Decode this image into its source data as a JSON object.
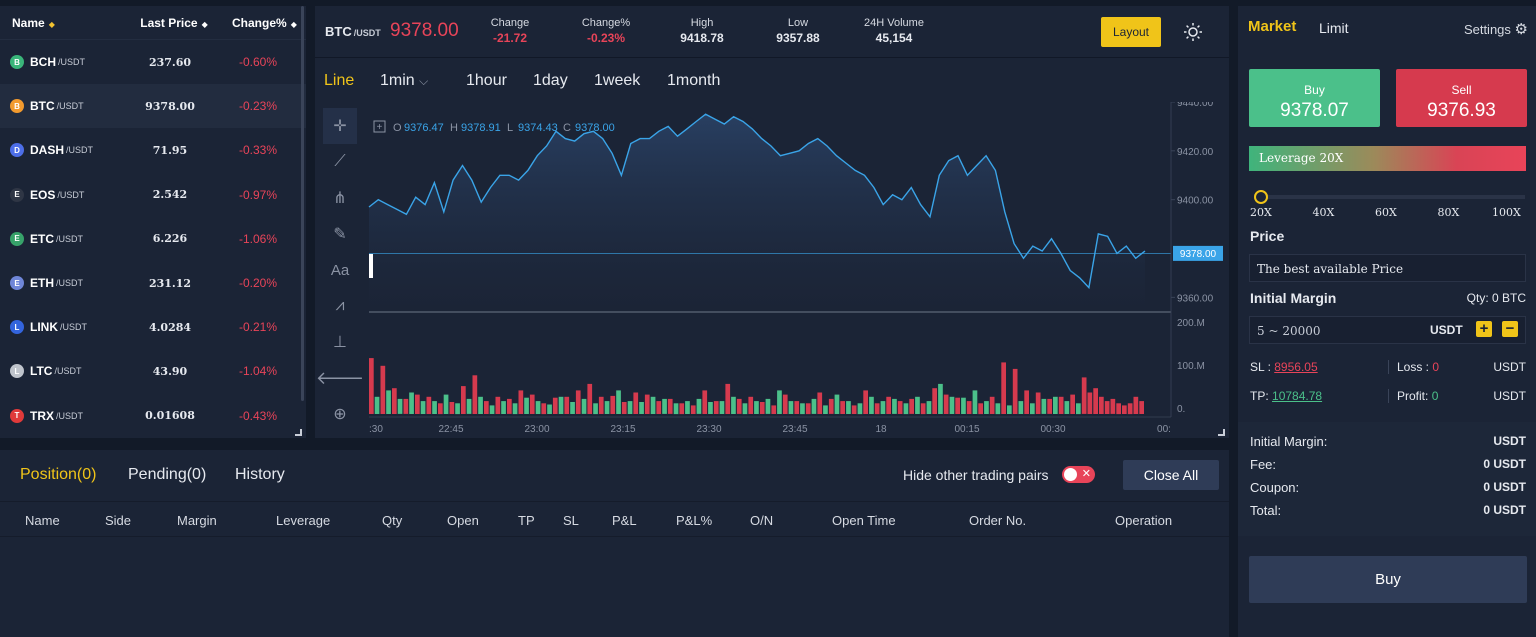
{
  "market_list": {
    "headers": {
      "name": "Name",
      "last_price": "Last Price",
      "change": "Change%"
    },
    "rows": [
      {
        "symbol": "BCH",
        "quote": "/USDT",
        "price": "237.60",
        "change": "-0.60%",
        "color": "#3ab57a",
        "glyph": "B"
      },
      {
        "symbol": "BTC",
        "quote": "/USDT",
        "price": "9378.00",
        "change": "-0.23%",
        "color": "#f29a2e",
        "glyph": "B"
      },
      {
        "symbol": "DASH",
        "quote": "/USDT",
        "price": "71.95",
        "change": "-0.33%",
        "color": "#4d6ee8",
        "glyph": "D"
      },
      {
        "symbol": "EOS",
        "quote": "/USDT",
        "price": "2.542",
        "change": "-0.97%",
        "color": "#2f3645",
        "glyph": "E"
      },
      {
        "symbol": "ETC",
        "quote": "/USDT",
        "price": "6.226",
        "change": "-1.06%",
        "color": "#37a26a",
        "glyph": "E"
      },
      {
        "symbol": "ETH",
        "quote": "/USDT",
        "price": "231.12",
        "change": "-0.20%",
        "color": "#6f86d8",
        "glyph": "E"
      },
      {
        "symbol": "LINK",
        "quote": "/USDT",
        "price": "4.0284",
        "change": "-0.21%",
        "color": "#3364dd",
        "glyph": "L"
      },
      {
        "symbol": "LTC",
        "quote": "/USDT",
        "price": "43.90",
        "change": "-1.04%",
        "color": "#bfc4cc",
        "glyph": "L"
      },
      {
        "symbol": "TRX",
        "quote": "/USDT",
        "price": "0.01608",
        "change": "-0.43%",
        "color": "#e03a3a",
        "glyph": "T"
      }
    ]
  },
  "ticker": {
    "symbol": "BTC",
    "quote": "/USDT",
    "price": "9378.00",
    "change_label": "Change",
    "change": "-21.72",
    "change_pct_label": "Change%",
    "change_pct": "-0.23%",
    "high_label": "High",
    "high": "9418.78",
    "low_label": "Low",
    "low": "9357.88",
    "volume_label": "24H Volume",
    "volume": "45,154",
    "layout_label": "Layout"
  },
  "timeframes": {
    "line": "Line",
    "min": "1min",
    "hour": "1hour",
    "day": "1day",
    "week": "1week",
    "month": "1month"
  },
  "ohlc": {
    "o_label": "O",
    "o": "9376.47",
    "h_label": "H",
    "h": "9378.91",
    "l_label": "L",
    "l": "9374.43",
    "c_label": "C",
    "c": "9378.00"
  },
  "chart_data": {
    "type": "line",
    "price_axis": {
      "ticks": [
        "9440.00",
        "9420.00",
        "9400.00",
        "9360.00"
      ],
      "ylim": [
        9354,
        9440
      ]
    },
    "volume_axis": {
      "ticks": [
        "200.M",
        "100.M",
        "0."
      ]
    },
    "time_ticks": [
      ":30",
      "22:45",
      "23:00",
      "23:15",
      "23:30",
      "23:45",
      "18",
      "00:15",
      "00:30",
      "00:"
    ],
    "current_price_label": "9378.00",
    "price": [
      9397,
      9400,
      9398,
      9396,
      9394,
      9401,
      9398,
      9407,
      9395,
      9408,
      9414,
      9408,
      9399,
      9405,
      9410,
      9410,
      9408,
      9412,
      9418,
      9422,
      9428,
      9425,
      9424,
      9427,
      9428,
      9425,
      9419,
      9410,
      9423,
      9425,
      9425,
      9428,
      9430,
      9426,
      9429,
      9432,
      9435,
      9433,
      9431,
      9434,
      9432,
      9429,
      9425,
      9422,
      9418,
      9419,
      9420,
      9423,
      9425,
      9422,
      9418,
      9415,
      9412,
      9410,
      9405,
      9398,
      9402,
      9400,
      9405,
      9398,
      9393,
      9410,
      9416,
      9418,
      9410,
      9414,
      9418,
      9412,
      9395,
      9382,
      9376,
      9381,
      9379,
      9384,
      9378,
      9371,
      9368,
      9364,
      9386,
      9385,
      9378,
      9381,
      9376,
      9379
    ],
    "volume_red": [
      130,
      112,
      60,
      35,
      45,
      40,
      25,
      28,
      65,
      90,
      30,
      40,
      35,
      55,
      45,
      25,
      38,
      40,
      55,
      70,
      40,
      42,
      28,
      50,
      45,
      30,
      35,
      25,
      20,
      55,
      30,
      70,
      35,
      40,
      28,
      20,
      45,
      30,
      25,
      50,
      35,
      30,
      20,
      55,
      25,
      40,
      30,
      35,
      25,
      60,
      45,
      38,
      30,
      25,
      40,
      120,
      105,
      55,
      50,
      35,
      40,
      45,
      85,
      50,
      60,
      40,
      30,
      35,
      25,
      20,
      25,
      40,
      30
    ],
    "volume_green": [
      40,
      55,
      35,
      50,
      30,
      30,
      45,
      25,
      35,
      40,
      20,
      30,
      25,
      38,
      30,
      22,
      40,
      28,
      35,
      25,
      30,
      55,
      30,
      28,
      40,
      35,
      25,
      30,
      35,
      28,
      30,
      40,
      25,
      30,
      35,
      55,
      30,
      25,
      35,
      20,
      45,
      30,
      25,
      40,
      30,
      35,
      25,
      40,
      30,
      70,
      40,
      38,
      55,
      30,
      25,
      20,
      30,
      25,
      35,
      40,
      30,
      25
    ]
  },
  "trade": {
    "tab_market": "Market",
    "tab_limit": "Limit",
    "settings": "Settings",
    "buy_label": "Buy",
    "buy_price": "9378.07",
    "sell_label": "Sell",
    "sell_price": "9376.93",
    "leverage_label": "Leverage 20X",
    "leverage_ticks": [
      "20X",
      "40X",
      "60X",
      "80X",
      "100X"
    ],
    "leverage_level": 0.0,
    "price_label": "Price",
    "price_value": "The best available Price",
    "margin_label": "Initial Margin",
    "qty": "Qty: 0 BTC",
    "margin_placeholder": "5 ~ 20000",
    "margin_unit": "USDT",
    "sl_label": "SL :",
    "sl_value": "8956.05",
    "loss_label": "Loss :",
    "loss_value": "0",
    "sl_unit": "USDT",
    "tp_label": "TP:",
    "tp_value": "10784.78",
    "profit_label": "Profit:",
    "profit_value": "0",
    "tp_unit": "USDT",
    "summary": [
      {
        "label": "Initial Margin:",
        "value": "USDT"
      },
      {
        "label": "Fee:",
        "value": "0 USDT"
      },
      {
        "label": "Coupon:",
        "value": "0 USDT"
      },
      {
        "label": "Total:",
        "value": "0 USDT"
      }
    ],
    "buy_button": "Buy"
  },
  "positions": {
    "tabs": [
      "Position(0)",
      "Pending(0)",
      "History"
    ],
    "hide_label": "Hide other trading pairs",
    "close_all": "Close All",
    "columns": [
      "Name",
      "Side",
      "Margin",
      "Leverage",
      "Qty",
      "Open",
      "TP",
      "SL",
      "P&L",
      "P&L%",
      "O/N",
      "Open Time",
      "Order No.",
      "Operation"
    ]
  },
  "colors": {
    "accent": "#f0c419",
    "up": "#4bc08a",
    "down": "#e84459",
    "line": "#3aa4e8"
  }
}
